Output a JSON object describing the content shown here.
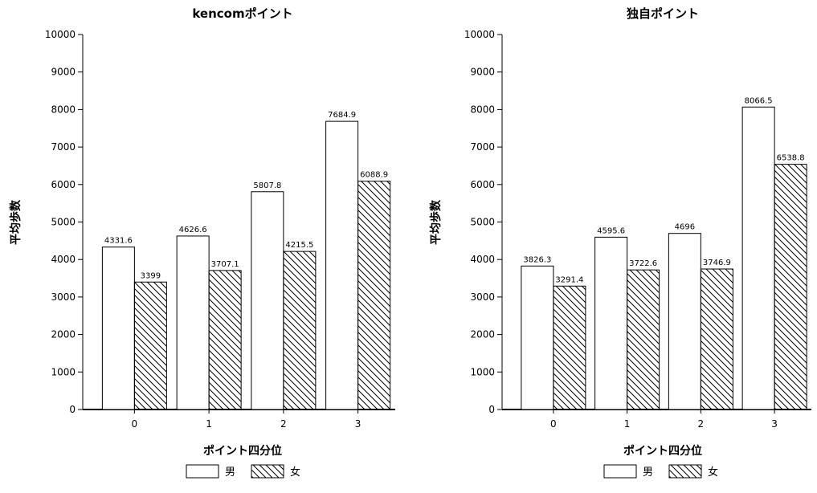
{
  "chart_data": [
    {
      "type": "bar",
      "title": "kencomポイント",
      "xlabel": "ポイント四分位",
      "ylabel": "平均歩数",
      "categories": [
        "0",
        "1",
        "2",
        "3"
      ],
      "series": [
        {
          "name": "男",
          "values": [
            4331.6,
            4626.6,
            5807.8,
            7684.9
          ],
          "pattern": "white"
        },
        {
          "name": "女",
          "values": [
            3399,
            3707.1,
            4215.5,
            6088.9
          ],
          "pattern": "hatched"
        }
      ],
      "value_labels": [
        [
          "4331.6",
          "4626.6",
          "5807.8",
          "7684.9"
        ],
        [
          "3399",
          "3707.1",
          "4215.5",
          "6088.9"
        ]
      ],
      "ylim": [
        0,
        10000
      ],
      "yticks": [
        0,
        1000,
        2000,
        3000,
        4000,
        5000,
        6000,
        7000,
        8000,
        9000,
        10000
      ],
      "grid": false,
      "legend": "bottom"
    },
    {
      "type": "bar",
      "title": "独自ポイント",
      "xlabel": "ポイント四分位",
      "ylabel": "平均歩数",
      "categories": [
        "0",
        "1",
        "2",
        "3"
      ],
      "series": [
        {
          "name": "男",
          "values": [
            3826.3,
            4595.6,
            4696,
            8066.5
          ],
          "pattern": "white"
        },
        {
          "name": "女",
          "values": [
            3291.4,
            3722.6,
            3746.9,
            6538.8
          ],
          "pattern": "hatched"
        }
      ],
      "value_labels": [
        [
          "3826.3",
          "4595.6",
          "4696",
          "8066.5"
        ],
        [
          "3291.4",
          "3722.6",
          "3746.9",
          "6538.8"
        ]
      ],
      "ylim": [
        0,
        10000
      ],
      "yticks": [
        0,
        1000,
        2000,
        3000,
        4000,
        5000,
        6000,
        7000,
        8000,
        9000,
        10000
      ],
      "grid": false,
      "legend": "bottom"
    }
  ]
}
